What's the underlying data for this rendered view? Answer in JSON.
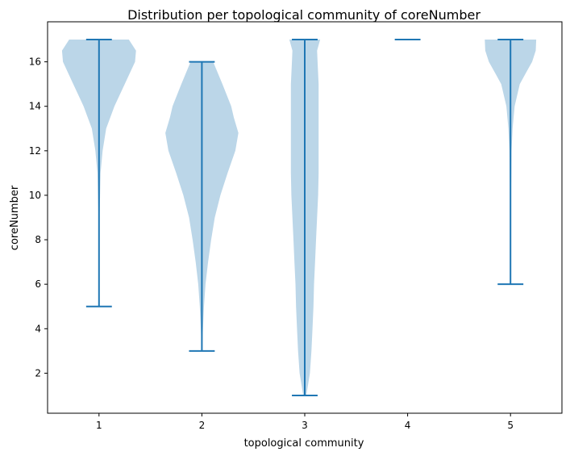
{
  "chart_data": {
    "type": "violin",
    "title": "Distribution per topological community of coreNumber",
    "xlabel": "topological community",
    "ylabel": "coreNumber",
    "categories": [
      "1",
      "2",
      "3",
      "4",
      "5"
    ],
    "yticks": [
      2,
      4,
      6,
      8,
      10,
      12,
      14,
      16
    ],
    "ylim": [
      0.2,
      17.8
    ],
    "xlim": [
      0.5,
      5.5
    ],
    "grid": false,
    "colors": {
      "violin_fill": "#1f77b4",
      "violin_line": "#1f77b4"
    },
    "series": [
      {
        "category": "1",
        "min": 5,
        "max": 17,
        "density": [
          [
            5,
            0
          ],
          [
            6,
            0.01
          ],
          [
            7,
            0.01
          ],
          [
            8,
            0.01
          ],
          [
            9,
            0.01
          ],
          [
            10,
            0.02
          ],
          [
            11,
            0.03
          ],
          [
            12,
            0.07
          ],
          [
            13,
            0.14
          ],
          [
            14,
            0.3
          ],
          [
            15,
            0.5
          ],
          [
            16,
            0.7
          ],
          [
            16.5,
            0.72
          ],
          [
            17,
            0.58
          ]
        ]
      },
      {
        "category": "2",
        "min": 3,
        "max": 16,
        "density": [
          [
            3,
            0
          ],
          [
            4,
            0.02
          ],
          [
            5,
            0.04
          ],
          [
            6,
            0.07
          ],
          [
            7,
            0.12
          ],
          [
            8,
            0.18
          ],
          [
            9,
            0.25
          ],
          [
            10,
            0.36
          ],
          [
            11,
            0.5
          ],
          [
            12,
            0.65
          ],
          [
            12.8,
            0.71
          ],
          [
            13.5,
            0.62
          ],
          [
            14,
            0.57
          ],
          [
            15,
            0.4
          ],
          [
            16,
            0.22
          ]
        ]
      },
      {
        "category": "3",
        "min": 1,
        "max": 17,
        "density": [
          [
            1,
            0.03
          ],
          [
            2,
            0.1
          ],
          [
            3,
            0.13
          ],
          [
            4,
            0.15
          ],
          [
            5,
            0.17
          ],
          [
            6,
            0.18
          ],
          [
            7,
            0.2
          ],
          [
            8,
            0.22
          ],
          [
            9,
            0.24
          ],
          [
            10,
            0.26
          ],
          [
            11,
            0.27
          ],
          [
            12,
            0.27
          ],
          [
            13,
            0.27
          ],
          [
            14,
            0.27
          ],
          [
            15,
            0.27
          ],
          [
            16,
            0.25
          ],
          [
            16.5,
            0.24
          ],
          [
            17,
            0.3
          ]
        ]
      },
      {
        "category": "4",
        "min": 17,
        "max": 17,
        "density": []
      },
      {
        "category": "5",
        "min": 6,
        "max": 17,
        "density": [
          [
            6,
            0
          ],
          [
            8,
            0.005
          ],
          [
            10,
            0.01
          ],
          [
            11,
            0.015
          ],
          [
            12,
            0.02
          ],
          [
            13,
            0.04
          ],
          [
            14,
            0.08
          ],
          [
            15,
            0.18
          ],
          [
            15.5,
            0.3
          ],
          [
            16,
            0.42
          ],
          [
            16.5,
            0.49
          ],
          [
            17,
            0.5
          ]
        ]
      }
    ]
  }
}
